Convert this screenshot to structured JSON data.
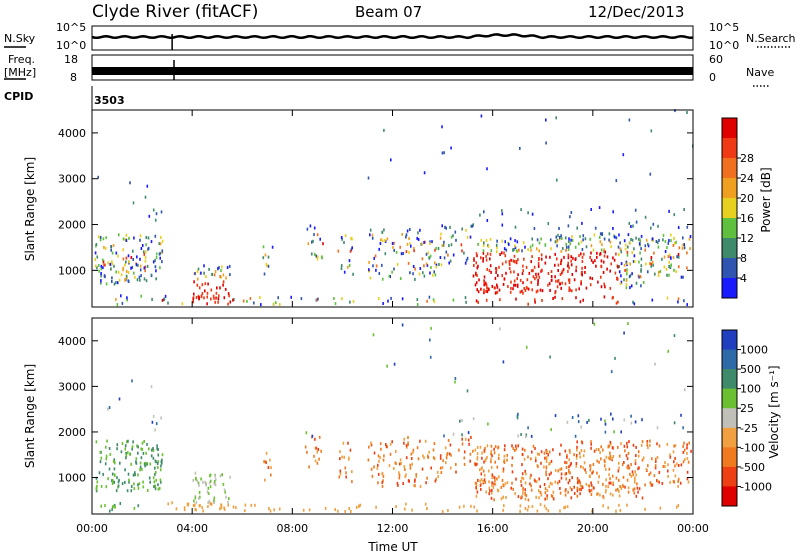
{
  "header": {
    "station": "Clyde River (fitACF)",
    "beam": "Beam 07",
    "date": "12/Dec/2013"
  },
  "top_panels": {
    "nsky_label": "N.Sky",
    "nsky_ticks": [
      "10^5",
      "10^0"
    ],
    "nsearch_label": "N.Search",
    "nsearch_ticks": [
      "10^5",
      "10^0"
    ],
    "freq_label": "Freq.",
    "freq_unit": "[MHz]",
    "freq_ticks": [
      "18",
      "8"
    ],
    "nave_label": "Nave",
    "nave_ticks": [
      "60",
      "0"
    ],
    "cpid_label": "CPID",
    "cpid_value": "3503"
  },
  "colors": {
    "power": [
      "#1a1aff",
      "#2f55b0",
      "#3f8a6a",
      "#5fc040",
      "#e8d020",
      "#f0a020",
      "#f07020",
      "#f03a15",
      "#e00000"
    ],
    "velocity": [
      "#1f3fbf",
      "#2f6aa8",
      "#3f8a6a",
      "#6ac030",
      "#c0c0b8",
      "#f0a040",
      "#f07a20",
      "#ee4015",
      "#e00000"
    ]
  },
  "chart_data": [
    {
      "type": "heatmap",
      "name": "power",
      "ylabel": "Slant Range [km]",
      "y_ticks": [
        "1000",
        "2000",
        "3000",
        "4000"
      ],
      "ylim": [
        200,
        4500
      ],
      "x_ticks": [
        "00:00",
        "04:00",
        "08:00",
        "12:00",
        "16:00",
        "20:00",
        "00:00"
      ],
      "xlim_hours": [
        0,
        24
      ],
      "colorbar_label": "Power [dB]",
      "colorbar_ticks": [
        "4",
        "8",
        "12",
        "16",
        "20",
        "24",
        "28"
      ],
      "colorbar_range": [
        0,
        30
      ]
    },
    {
      "type": "heatmap",
      "name": "velocity",
      "ylabel": "Slant Range [km]",
      "y_ticks": [
        "1000",
        "2000",
        "3000",
        "4000"
      ],
      "ylim": [
        200,
        4500
      ],
      "x_ticks": [
        "00:00",
        "04:00",
        "08:00",
        "12:00",
        "16:00",
        "20:00",
        "00:00"
      ],
      "xlim_hours": [
        0,
        24
      ],
      "xlabel": "Time UT",
      "colorbar_label": "Velocity [m s⁻¹]",
      "colorbar_ticks": [
        "1000",
        "500",
        "100",
        "25",
        "-25",
        "-100",
        "-500",
        "-1000"
      ]
    }
  ]
}
